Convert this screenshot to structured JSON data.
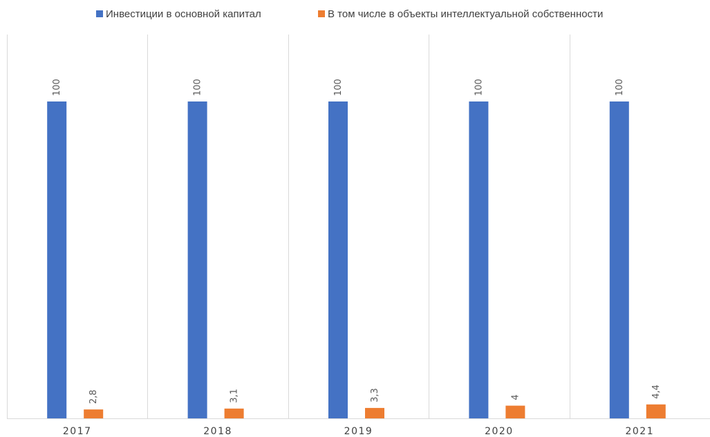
{
  "chart_data": {
    "type": "bar",
    "categories": [
      "2017",
      "2018",
      "2019",
      "2020",
      "2021"
    ],
    "series": [
      {
        "name": "Инвестиции в основной капитал",
        "values": [
          100,
          100,
          100,
          100,
          100
        ],
        "labels": [
          "100",
          "100",
          "100",
          "100",
          "100"
        ],
        "color": "#4472C4"
      },
      {
        "name": "В том числе в объекты интеллектуальной собственности",
        "values": [
          2.8,
          3.1,
          3.3,
          4,
          4.4
        ],
        "labels": [
          "2,8",
          "3,1",
          "3,3",
          "4",
          "4,4"
        ],
        "color": "#ED7D31"
      }
    ],
    "ylim": [
      0,
      100
    ],
    "grid": "vertical category separators",
    "legend": "top-center",
    "data_label_orientation": "vertical"
  }
}
